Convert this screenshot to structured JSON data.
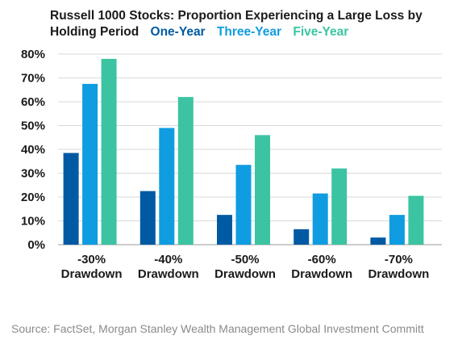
{
  "chart_data": {
    "type": "bar",
    "title": "Russell 1000 Stocks: Proportion Experiencing a Large Loss by Holding Period",
    "categories": [
      [
        "-30%",
        "Drawdown"
      ],
      [
        "-40%",
        "Drawdown"
      ],
      [
        "-50%",
        "Drawdown"
      ],
      [
        "-60%",
        "Drawdown"
      ],
      [
        "-70%",
        "Drawdown"
      ]
    ],
    "series": [
      {
        "name": "One-Year",
        "color": "#005aa3",
        "values": [
          38.5,
          22.5,
          12.5,
          6.5,
          3
        ]
      },
      {
        "name": "Three-Year",
        "color": "#109ce0",
        "values": [
          67.5,
          49,
          33.5,
          21.5,
          12.5
        ]
      },
      {
        "name": "Five-Year",
        "color": "#3cc4a2",
        "values": [
          78,
          62,
          46,
          32,
          20.5
        ]
      }
    ],
    "ylim": [
      0,
      80
    ],
    "yticks": [
      "0%",
      "10%",
      "20%",
      "30%",
      "40%",
      "50%",
      "60%",
      "70%",
      "80%"
    ],
    "grid": true,
    "legend": "inline-title"
  },
  "source": "Source: FactSet, Morgan Stanley Wealth Management Global Investment Committ"
}
